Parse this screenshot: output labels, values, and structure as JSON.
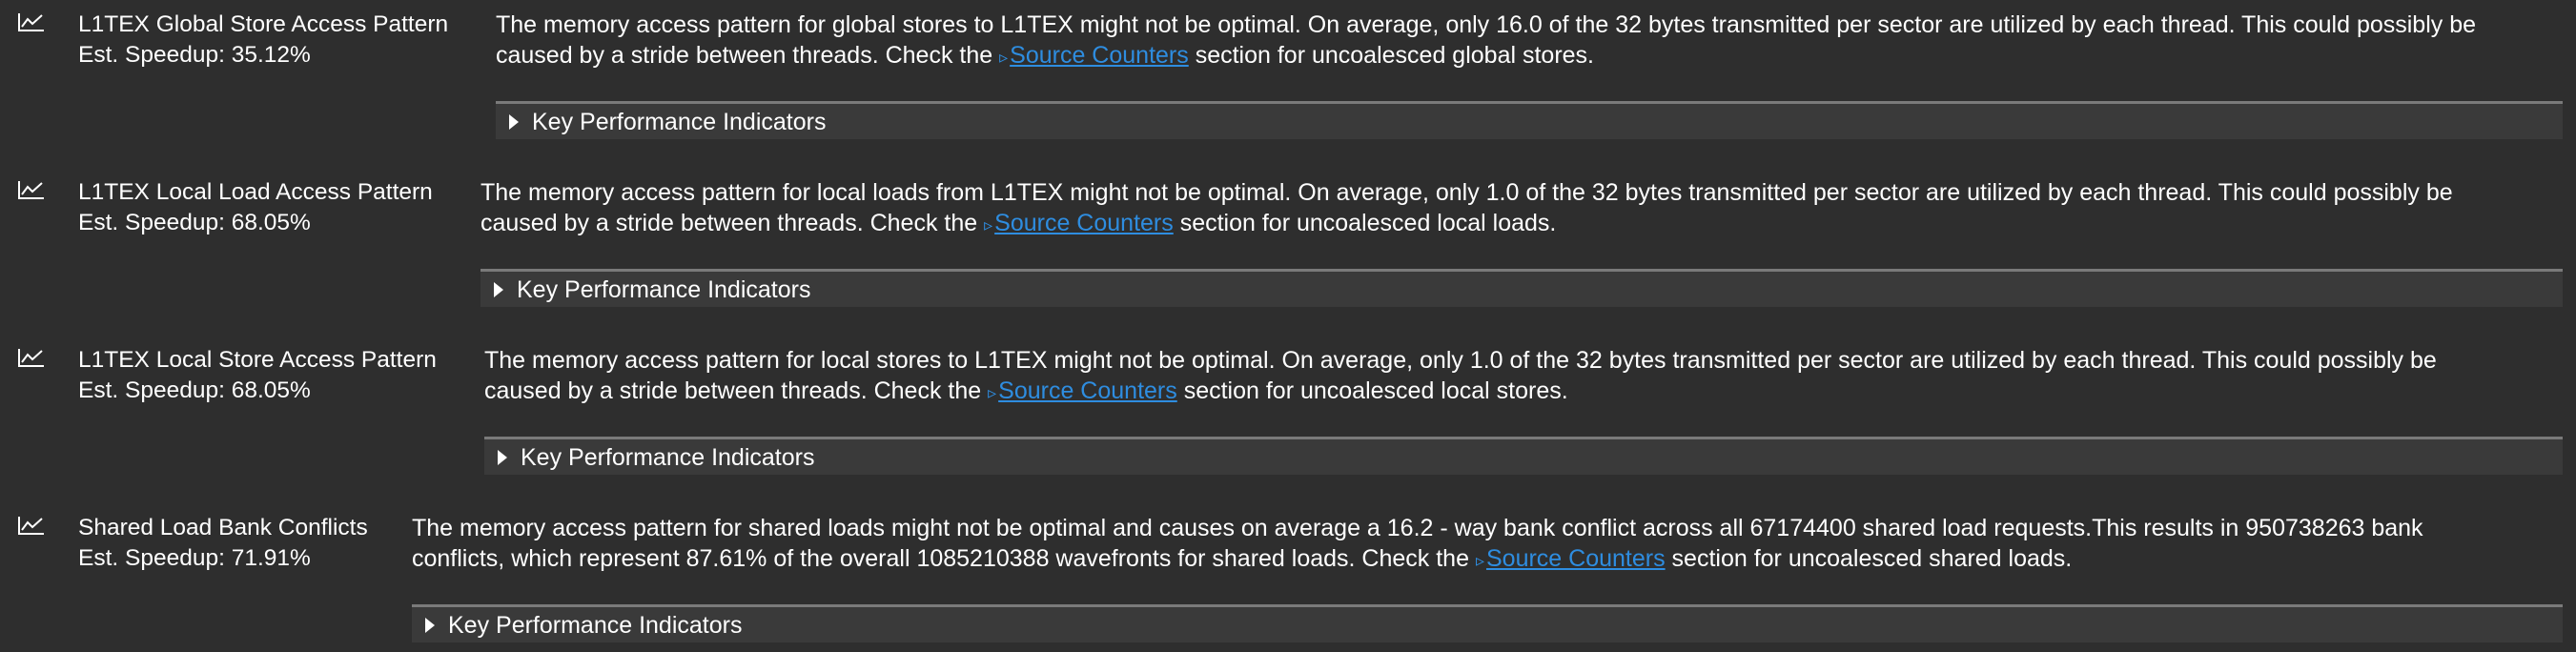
{
  "rules": [
    {
      "title": "L1TEX Global Store Access Pattern",
      "speedup": "Est. Speedup: 35.12%",
      "line1": "The memory access pattern for global stores to L1TEX might not be optimal. On average, only 16.0 of the 32 bytes transmitted per sector are utilized by each thread. This could possibly be",
      "line2_before": "caused by a stride between threads. Check the ",
      "link": "Source Counters",
      "line2_after": " section for uncoalesced global stores.",
      "kpi_label": "Key Performance Indicators"
    },
    {
      "title": "L1TEX Local Load Access Pattern",
      "speedup": "Est. Speedup: 68.05%",
      "line1": "The memory access pattern for local loads from L1TEX might not be optimal. On average, only 1.0 of the 32 bytes transmitted per sector are utilized by each thread. This could possibly be",
      "line2_before": "caused by a stride between threads. Check the ",
      "link": "Source Counters",
      "line2_after": " section for uncoalesced local loads.",
      "kpi_label": "Key Performance Indicators"
    },
    {
      "title": "L1TEX Local Store Access Pattern",
      "speedup": "Est. Speedup: 68.05%",
      "line1": "The memory access pattern for local stores to L1TEX might not be optimal. On average, only 1.0 of the 32 bytes transmitted per sector are utilized by each thread. This could possibly be",
      "line2_before": "caused by a stride between threads. Check the ",
      "link": "Source Counters",
      "line2_after": " section for uncoalesced local stores.",
      "kpi_label": "Key Performance Indicators"
    },
    {
      "title": "Shared Load Bank Conflicts",
      "speedup": "Est. Speedup: 71.91%",
      "line1": "The memory access pattern for shared loads might not be optimal and causes on average a 16.2 - way bank conflict across all 67174400 shared load requests.This results in 950738263 bank",
      "line2_before": "conflicts, which represent 87.61% of the overall 1085210388 wavefronts for shared loads. Check the ",
      "link": "Source Counters",
      "line2_after": " section for uncoalesced shared loads.",
      "kpi_label": "Key Performance Indicators"
    }
  ],
  "icons": {
    "rule": "line-chart-icon",
    "kpi": "caret-right-icon",
    "link": "link-arrow-icon"
  },
  "colors": {
    "background": "#2e2e2e",
    "text": "#ffffff",
    "link": "#2e8de0",
    "kpi_bar": "#3a3a3a",
    "kpi_border": "#7a7a7a"
  }
}
